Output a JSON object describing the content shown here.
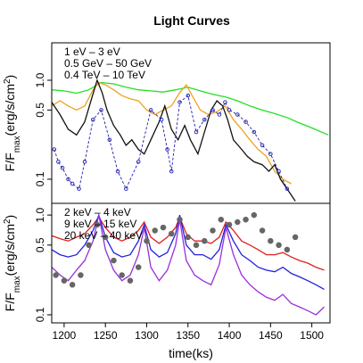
{
  "chart_data": [
    {
      "type": "line",
      "title": "Light Curves",
      "ylabel": [
        {
          "text": "F/F"
        },
        {
          "text": "max",
          "sub": true
        },
        {
          "text": "(erg/s/cm"
        },
        {
          "text": "2",
          "sup": true
        },
        {
          "text": ")"
        }
      ],
      "log_y": true,
      "xlim": [
        1185,
        1522
      ],
      "ylim": [
        2.39,
        0.057
      ],
      "yticks": [
        0.1,
        0.5,
        {
          "value": 1,
          "label": "1.0"
        }
      ],
      "legend": "top-left",
      "series": [
        {
          "name": "1 eV – 3 eV",
          "color": "#22e022",
          "style": "line",
          "x": [
            1185,
            1200,
            1215,
            1230,
            1245,
            1260,
            1275,
            1290,
            1305,
            1320,
            1335,
            1350,
            1365,
            1380,
            1395,
            1410,
            1425,
            1440,
            1455,
            1470,
            1485,
            1500,
            1520
          ],
          "values": [
            0.8,
            0.78,
            0.74,
            0.8,
            0.95,
            0.92,
            0.85,
            0.8,
            0.78,
            0.76,
            0.8,
            0.85,
            0.78,
            0.72,
            0.68,
            0.62,
            0.55,
            0.5,
            0.46,
            0.42,
            0.37,
            0.33,
            0.28
          ]
        },
        {
          "name": "0.5 GeV – 50 GeV",
          "color": "#f0a020",
          "style": "line",
          "x": [
            1185,
            1195,
            1205,
            1215,
            1225,
            1235,
            1242,
            1250,
            1260,
            1270,
            1280,
            1290,
            1300,
            1310,
            1320,
            1330,
            1340,
            1348,
            1355,
            1365,
            1375,
            1385,
            1395,
            1405,
            1415,
            1425,
            1435,
            1445,
            1455,
            1465,
            1475
          ],
          "values": [
            0.55,
            0.62,
            0.55,
            0.5,
            0.55,
            0.8,
            0.95,
            0.9,
            0.8,
            0.7,
            0.65,
            0.62,
            0.5,
            0.45,
            0.5,
            0.55,
            0.75,
            0.9,
            0.7,
            0.5,
            0.45,
            0.48,
            0.55,
            0.4,
            0.32,
            0.25,
            0.2,
            0.17,
            0.12,
            0.1,
            0.09
          ]
        },
        {
          "name": "0.4 TeV – 10 TeV",
          "color": "#111111",
          "style": "line",
          "x": [
            1185,
            1195,
            1205,
            1215,
            1225,
            1232,
            1240,
            1246,
            1252,
            1260,
            1268,
            1275,
            1282,
            1290,
            1297,
            1305,
            1315,
            1322,
            1330,
            1338,
            1346,
            1353,
            1362,
            1370,
            1378,
            1385,
            1392,
            1398,
            1405,
            1415,
            1422,
            1430,
            1440,
            1448,
            1455,
            1462,
            1470,
            1480
          ],
          "values": [
            0.6,
            0.45,
            0.32,
            0.28,
            0.38,
            0.6,
            1.0,
            0.75,
            0.5,
            0.35,
            0.28,
            0.22,
            0.25,
            0.2,
            0.18,
            0.25,
            0.38,
            0.55,
            0.32,
            0.25,
            0.35,
            0.25,
            0.18,
            0.3,
            0.5,
            0.62,
            0.55,
            0.4,
            0.25,
            0.2,
            0.17,
            0.15,
            0.14,
            0.12,
            0.14,
            0.1,
            0.08,
            0.06
          ]
        },
        {
          "color": "#2020b0",
          "style": "open-points-dashed",
          "x": [
            1188,
            1193,
            1198,
            1205,
            1210,
            1218,
            1225,
            1235,
            1245,
            1255,
            1265,
            1275,
            1290,
            1305,
            1318,
            1325,
            1330,
            1340,
            1350,
            1360,
            1370,
            1380,
            1388,
            1395,
            1400,
            1410,
            1420,
            1430,
            1440,
            1450,
            1460,
            1470
          ],
          "values": [
            0.2,
            0.15,
            0.13,
            0.1,
            0.09,
            0.08,
            0.15,
            0.4,
            0.5,
            0.25,
            0.12,
            0.08,
            0.15,
            0.5,
            0.4,
            0.2,
            0.12,
            0.6,
            0.7,
            0.3,
            0.4,
            0.5,
            0.45,
            0.6,
            0.5,
            0.45,
            0.38,
            0.3,
            0.22,
            0.18,
            0.12,
            0.08
          ]
        }
      ]
    },
    {
      "type": "line",
      "xlabel": "time(ks)",
      "ylabel": [
        {
          "text": "F/F"
        },
        {
          "text": "max",
          "sub": true
        },
        {
          "text": "(erg/s/cm"
        },
        {
          "text": "2",
          "sup": true
        },
        {
          "text": ")"
        }
      ],
      "log_y": true,
      "xlim": [
        1185,
        1522
      ],
      "ylim": [
        1.31,
        0.083
      ],
      "xticks": [
        1200,
        1250,
        1300,
        1350,
        1400,
        1450,
        1500
      ],
      "yticks": [
        0.1,
        0.5,
        {
          "value": 1,
          "label": "1.0"
        }
      ],
      "legend": "top-left",
      "series": [
        {
          "name": "2 keV – 4 keV",
          "color": "#e02020",
          "style": "line",
          "x": [
            1185,
            1195,
            1205,
            1215,
            1225,
            1235,
            1242,
            1250,
            1260,
            1270,
            1280,
            1290,
            1297,
            1305,
            1315,
            1325,
            1335,
            1340,
            1348,
            1358,
            1368,
            1378,
            1388,
            1396,
            1405,
            1415,
            1425,
            1435,
            1445,
            1455,
            1465,
            1475,
            1485,
            1495,
            1505,
            1515
          ],
          "values": [
            0.62,
            0.58,
            0.55,
            0.6,
            0.65,
            0.8,
            0.95,
            0.75,
            0.6,
            0.55,
            0.6,
            0.7,
            0.85,
            0.6,
            0.52,
            0.6,
            0.75,
            0.95,
            0.65,
            0.55,
            0.55,
            0.52,
            0.6,
            0.85,
            0.7,
            0.55,
            0.5,
            0.45,
            0.4,
            0.4,
            0.42,
            0.38,
            0.35,
            0.33,
            0.3,
            0.28
          ]
        },
        {
          "name": "9 keV – 15 keV",
          "color": "#2020e0",
          "style": "line",
          "x": [
            1185,
            1195,
            1205,
            1215,
            1225,
            1235,
            1242,
            1250,
            1260,
            1270,
            1280,
            1290,
            1297,
            1305,
            1315,
            1325,
            1335,
            1340,
            1348,
            1358,
            1368,
            1378,
            1388,
            1396,
            1405,
            1415,
            1425,
            1435,
            1445,
            1455,
            1465,
            1475,
            1485,
            1495,
            1505,
            1515
          ],
          "values": [
            0.45,
            0.4,
            0.38,
            0.4,
            0.5,
            0.7,
            1.0,
            0.6,
            0.42,
            0.38,
            0.4,
            0.55,
            0.8,
            0.45,
            0.38,
            0.42,
            0.65,
            1.0,
            0.5,
            0.4,
            0.4,
            0.36,
            0.45,
            0.8,
            0.55,
            0.4,
            0.35,
            0.3,
            0.28,
            0.27,
            0.3,
            0.26,
            0.24,
            0.22,
            0.2,
            0.18
          ]
        },
        {
          "name": "20 keV – 40 keV",
          "color": "#9a30d8",
          "style": "line",
          "x": [
            1185,
            1195,
            1205,
            1215,
            1225,
            1235,
            1242,
            1250,
            1260,
            1270,
            1280,
            1290,
            1297,
            1305,
            1315,
            1325,
            1335,
            1340,
            1348,
            1358,
            1368,
            1378,
            1388,
            1396,
            1405,
            1415,
            1425,
            1435,
            1445,
            1455,
            1465,
            1475,
            1485,
            1495,
            1505,
            1515
          ],
          "values": [
            0.3,
            0.25,
            0.22,
            0.28,
            0.35,
            0.55,
            1.0,
            0.45,
            0.28,
            0.22,
            0.25,
            0.4,
            0.75,
            0.3,
            0.22,
            0.28,
            0.5,
            0.9,
            0.35,
            0.25,
            0.22,
            0.2,
            0.32,
            0.75,
            0.4,
            0.25,
            0.2,
            0.17,
            0.15,
            0.14,
            0.16,
            0.13,
            0.12,
            0.11,
            0.1,
            0.12
          ]
        },
        {
          "color": "#666666",
          "style": "filled-points",
          "x": [
            1190,
            1200,
            1210,
            1220,
            1230,
            1240,
            1250,
            1260,
            1270,
            1280,
            1290,
            1300,
            1310,
            1320,
            1330,
            1340,
            1350,
            1360,
            1370,
            1380,
            1390,
            1400,
            1410,
            1420,
            1430,
            1440,
            1450,
            1460,
            1470,
            1480
          ],
          "values": [
            0.25,
            0.22,
            0.2,
            0.25,
            0.5,
            0.8,
            0.6,
            0.35,
            0.25,
            0.22,
            0.3,
            0.55,
            0.7,
            0.75,
            0.65,
            0.9,
            0.6,
            0.5,
            0.55,
            0.7,
            0.9,
            0.8,
            0.85,
            0.9,
            1.0,
            0.7,
            0.55,
            0.5,
            0.45,
            0.6
          ]
        }
      ]
    }
  ]
}
